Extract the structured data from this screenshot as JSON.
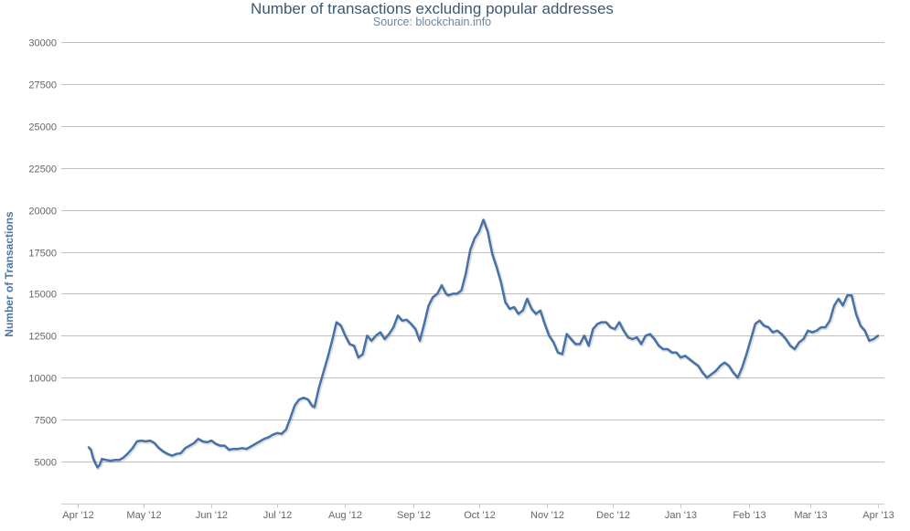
{
  "chart_data": {
    "type": "line",
    "title": "Number of transactions excluding popular addresses",
    "subtitle": "Source: blockchain.info",
    "xlabel": "",
    "ylabel": "Number of Transactions",
    "ylim": [
      5000,
      30000
    ],
    "yticks": [
      5000,
      7500,
      10000,
      12500,
      15000,
      17500,
      20000,
      22500,
      25000,
      27500,
      30000
    ],
    "xticks": [
      "Apr '12",
      "May '12",
      "Jun '12",
      "Jul '12",
      "Aug '12",
      "Sep '12",
      "Oct '12",
      "Nov '12",
      "Dec '12",
      "Jan '13",
      "Feb '13",
      "Mar '13",
      "Apr '13"
    ],
    "x_range": [
      "2012-04-01",
      "2013-04-01"
    ],
    "grid": "horizontal",
    "legend": "none",
    "line_color": "#4572a7",
    "series": [
      {
        "points": [
          [
            "2012-04-06",
            5850
          ],
          [
            "2012-04-07",
            5700
          ],
          [
            "2012-04-08",
            5200
          ],
          [
            "2012-04-09",
            4900
          ],
          [
            "2012-04-10",
            4650
          ],
          [
            "2012-04-11",
            4800
          ],
          [
            "2012-04-12",
            5150
          ],
          [
            "2012-04-14",
            5100
          ],
          [
            "2012-04-16",
            5050
          ],
          [
            "2012-04-18",
            5100
          ],
          [
            "2012-04-20",
            5100
          ],
          [
            "2012-04-22",
            5250
          ],
          [
            "2012-04-24",
            5500
          ],
          [
            "2012-04-26",
            5800
          ],
          [
            "2012-04-28",
            6200
          ],
          [
            "2012-04-30",
            6250
          ],
          [
            "2012-05-02",
            6200
          ],
          [
            "2012-05-04",
            6250
          ],
          [
            "2012-05-06",
            6100
          ],
          [
            "2012-05-08",
            5800
          ],
          [
            "2012-05-10",
            5600
          ],
          [
            "2012-05-12",
            5450
          ],
          [
            "2012-05-14",
            5350
          ],
          [
            "2012-05-16",
            5450
          ],
          [
            "2012-05-18",
            5500
          ],
          [
            "2012-05-20",
            5800
          ],
          [
            "2012-05-22",
            5950
          ],
          [
            "2012-05-24",
            6100
          ],
          [
            "2012-05-26",
            6350
          ],
          [
            "2012-05-28",
            6200
          ],
          [
            "2012-05-30",
            6150
          ],
          [
            "2012-06-01",
            6250
          ],
          [
            "2012-06-03",
            6050
          ],
          [
            "2012-06-05",
            5950
          ],
          [
            "2012-06-07",
            5950
          ],
          [
            "2012-06-09",
            5700
          ],
          [
            "2012-06-11",
            5750
          ],
          [
            "2012-06-13",
            5750
          ],
          [
            "2012-06-15",
            5800
          ],
          [
            "2012-06-17",
            5750
          ],
          [
            "2012-06-19",
            5900
          ],
          [
            "2012-06-21",
            6050
          ],
          [
            "2012-06-23",
            6200
          ],
          [
            "2012-06-25",
            6350
          ],
          [
            "2012-06-27",
            6450
          ],
          [
            "2012-06-29",
            6600
          ],
          [
            "2012-07-01",
            6700
          ],
          [
            "2012-07-03",
            6650
          ],
          [
            "2012-07-05",
            6900
          ],
          [
            "2012-07-07",
            7600
          ],
          [
            "2012-07-09",
            8350
          ],
          [
            "2012-07-11",
            8700
          ],
          [
            "2012-07-13",
            8800
          ],
          [
            "2012-07-15",
            8700
          ],
          [
            "2012-07-17",
            8300
          ],
          [
            "2012-07-18",
            8250
          ],
          [
            "2012-07-20",
            9400
          ],
          [
            "2012-07-22",
            10300
          ],
          [
            "2012-07-24",
            11200
          ],
          [
            "2012-07-26",
            12200
          ],
          [
            "2012-07-28",
            13300
          ],
          [
            "2012-07-30",
            13100
          ],
          [
            "2012-08-01",
            12500
          ],
          [
            "2012-08-03",
            12000
          ],
          [
            "2012-08-05",
            11900
          ],
          [
            "2012-08-07",
            11200
          ],
          [
            "2012-08-09",
            11400
          ],
          [
            "2012-08-11",
            12500
          ],
          [
            "2012-08-13",
            12200
          ],
          [
            "2012-08-15",
            12500
          ],
          [
            "2012-08-17",
            12700
          ],
          [
            "2012-08-19",
            12300
          ],
          [
            "2012-08-21",
            12600
          ],
          [
            "2012-08-23",
            13000
          ],
          [
            "2012-08-25",
            13700
          ],
          [
            "2012-08-27",
            13400
          ],
          [
            "2012-08-29",
            13450
          ],
          [
            "2012-08-31",
            13200
          ],
          [
            "2012-09-02",
            12900
          ],
          [
            "2012-09-04",
            12200
          ],
          [
            "2012-09-06",
            13200
          ],
          [
            "2012-09-08",
            14300
          ],
          [
            "2012-09-10",
            14800
          ],
          [
            "2012-09-12",
            15000
          ],
          [
            "2012-09-14",
            15500
          ],
          [
            "2012-09-16",
            15000
          ],
          [
            "2012-09-17",
            14900
          ],
          [
            "2012-09-19",
            15000
          ],
          [
            "2012-09-21",
            15000
          ],
          [
            "2012-09-23",
            15200
          ],
          [
            "2012-09-25",
            16200
          ],
          [
            "2012-09-27",
            17600
          ],
          [
            "2012-09-29",
            18300
          ],
          [
            "2012-10-01",
            18700
          ],
          [
            "2012-10-03",
            19400
          ],
          [
            "2012-10-05",
            18700
          ],
          [
            "2012-10-07",
            17400
          ],
          [
            "2012-10-09",
            16600
          ],
          [
            "2012-10-11",
            15700
          ],
          [
            "2012-10-13",
            14500
          ],
          [
            "2012-10-15",
            14100
          ],
          [
            "2012-10-17",
            14200
          ],
          [
            "2012-10-19",
            13800
          ],
          [
            "2012-10-21",
            14000
          ],
          [
            "2012-10-23",
            14700
          ],
          [
            "2012-10-25",
            14100
          ],
          [
            "2012-10-27",
            13800
          ],
          [
            "2012-10-29",
            14000
          ],
          [
            "2012-10-31",
            13200
          ],
          [
            "2012-11-02",
            12500
          ],
          [
            "2012-11-04",
            12100
          ],
          [
            "2012-11-06",
            11500
          ],
          [
            "2012-11-08",
            11400
          ],
          [
            "2012-11-10",
            12600
          ],
          [
            "2012-11-12",
            12300
          ],
          [
            "2012-11-14",
            12000
          ],
          [
            "2012-11-16",
            12000
          ],
          [
            "2012-11-18",
            12500
          ],
          [
            "2012-11-20",
            11900
          ],
          [
            "2012-11-22",
            12900
          ],
          [
            "2012-11-24",
            13200
          ],
          [
            "2012-11-26",
            13300
          ],
          [
            "2012-11-28",
            13300
          ],
          [
            "2012-11-30",
            13000
          ],
          [
            "2012-12-02",
            12900
          ],
          [
            "2012-12-04",
            13300
          ],
          [
            "2012-12-06",
            12800
          ],
          [
            "2012-12-08",
            12400
          ],
          [
            "2012-12-10",
            12300
          ],
          [
            "2012-12-12",
            12400
          ],
          [
            "2012-12-14",
            12000
          ],
          [
            "2012-12-16",
            12500
          ],
          [
            "2012-12-18",
            12600
          ],
          [
            "2012-12-20",
            12300
          ],
          [
            "2012-12-22",
            11900
          ],
          [
            "2012-12-24",
            11700
          ],
          [
            "2012-12-26",
            11700
          ],
          [
            "2012-12-28",
            11500
          ],
          [
            "2012-12-30",
            11500
          ],
          [
            "2013-01-01",
            11200
          ],
          [
            "2013-01-03",
            11300
          ],
          [
            "2013-01-05",
            11100
          ],
          [
            "2013-01-07",
            10900
          ],
          [
            "2013-01-09",
            10700
          ],
          [
            "2013-01-11",
            10300
          ],
          [
            "2013-01-13",
            10000
          ],
          [
            "2013-01-15",
            10200
          ],
          [
            "2013-01-17",
            10400
          ],
          [
            "2013-01-19",
            10700
          ],
          [
            "2013-01-21",
            10900
          ],
          [
            "2013-01-23",
            10700
          ],
          [
            "2013-01-25",
            10300
          ],
          [
            "2013-01-27",
            10000
          ],
          [
            "2013-01-29",
            10600
          ],
          [
            "2013-01-31",
            11400
          ],
          [
            "2013-02-02",
            12300
          ],
          [
            "2013-02-04",
            13200
          ],
          [
            "2013-02-06",
            13400
          ],
          [
            "2013-02-08",
            13100
          ],
          [
            "2013-02-10",
            13000
          ],
          [
            "2013-02-12",
            12700
          ],
          [
            "2013-02-14",
            12800
          ],
          [
            "2013-02-16",
            12600
          ],
          [
            "2013-02-18",
            12300
          ],
          [
            "2013-02-20",
            11900
          ],
          [
            "2013-02-22",
            11700
          ],
          [
            "2013-02-24",
            12100
          ],
          [
            "2013-02-26",
            12300
          ],
          [
            "2013-02-28",
            12800
          ],
          [
            "2013-03-02",
            12700
          ],
          [
            "2013-03-04",
            12800
          ],
          [
            "2013-03-06",
            13000
          ],
          [
            "2013-03-08",
            13000
          ],
          [
            "2013-03-10",
            13400
          ],
          [
            "2013-03-12",
            14300
          ],
          [
            "2013-03-14",
            14700
          ],
          [
            "2013-03-16",
            14300
          ],
          [
            "2013-03-18",
            14900
          ],
          [
            "2013-03-20",
            14900
          ],
          [
            "2013-03-22",
            13800
          ],
          [
            "2013-03-24",
            13100
          ],
          [
            "2013-03-26",
            12800
          ],
          [
            "2013-03-28",
            12200
          ],
          [
            "2013-03-30",
            12300
          ],
          [
            "2013-04-01",
            12500
          ]
        ]
      }
    ]
  }
}
